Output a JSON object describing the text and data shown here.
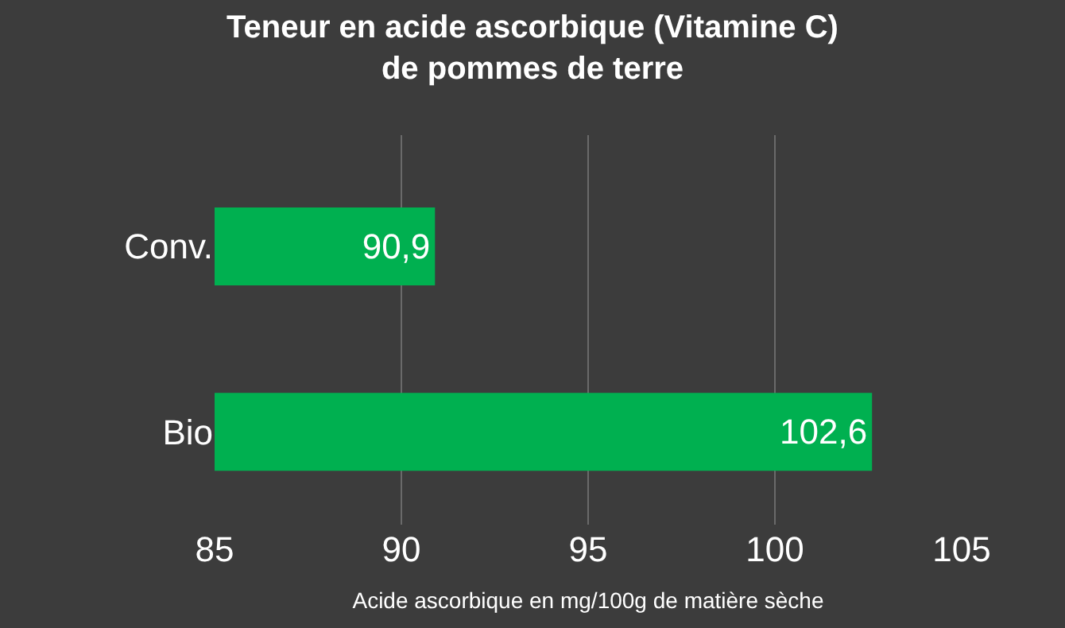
{
  "chart_data": {
    "type": "bar",
    "orientation": "horizontal",
    "title": "Teneur en acide ascorbique (Vitamine C)\nde pommes de terre",
    "xlabel": "Acide ascorbique en mg/100g de matière sèche",
    "categories": [
      "Conv.",
      "Bio"
    ],
    "values": [
      90.9,
      102.6
    ],
    "value_labels": [
      "90,9",
      "102,6"
    ],
    "color": "#00b050",
    "xlim": [
      85,
      105
    ],
    "xticks": [
      85,
      90,
      95,
      100,
      105
    ],
    "grid": "x"
  }
}
